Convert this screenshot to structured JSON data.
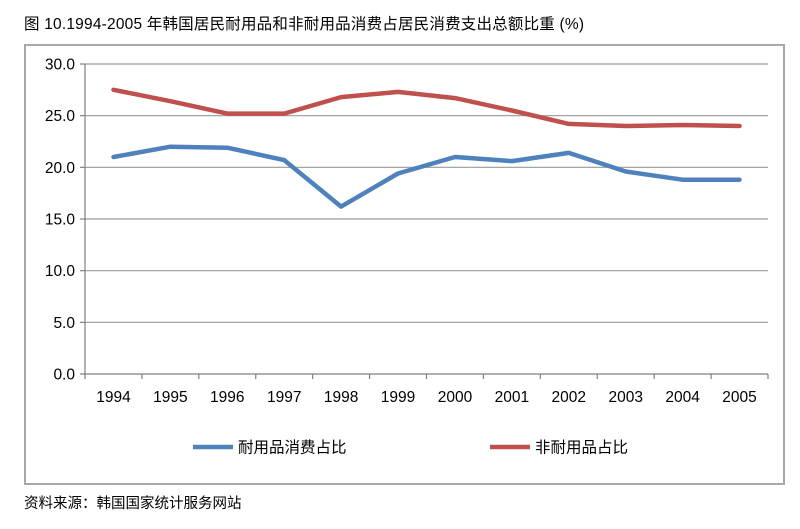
{
  "page": {
    "title": "图 10.1994-2005 年韩国居民耐用品和非耐用品消费占居民消费支出总额比重 (%)",
    "source_note": "资料来源：韩国国家统计服务网站"
  },
  "chart_data": {
    "type": "line",
    "title": "图 10.1994-2005 年韩国居民耐用品和非耐用品消费占居民消费支出总额比重 (%)",
    "categories": [
      "1994",
      "1995",
      "1996",
      "1997",
      "1998",
      "1999",
      "2000",
      "2001",
      "2002",
      "2003",
      "2004",
      "2005"
    ],
    "series": [
      {
        "name": "耐用品消费占比",
        "color": "#4f81bd",
        "values": [
          21.0,
          22.0,
          21.9,
          20.7,
          16.2,
          19.4,
          21.0,
          20.6,
          21.4,
          19.6,
          18.8,
          18.8
        ]
      },
      {
        "name": "非耐用品占比",
        "color": "#c0504d",
        "values": [
          27.5,
          26.4,
          25.2,
          25.2,
          26.8,
          27.3,
          26.7,
          25.5,
          24.2,
          24.0,
          24.1,
          24.0
        ]
      }
    ],
    "xlabel": "",
    "ylabel": "",
    "ylim": [
      0,
      30
    ],
    "ytick_step": 5,
    "ytick_labels": [
      "0.0",
      "5.0",
      "10.0",
      "15.0",
      "20.0",
      "25.0",
      "30.0"
    ],
    "grid": true,
    "gridline_color": "#9a9a9a",
    "axis_color": "#808080",
    "text_color": "#000000",
    "legend_position": "bottom"
  }
}
